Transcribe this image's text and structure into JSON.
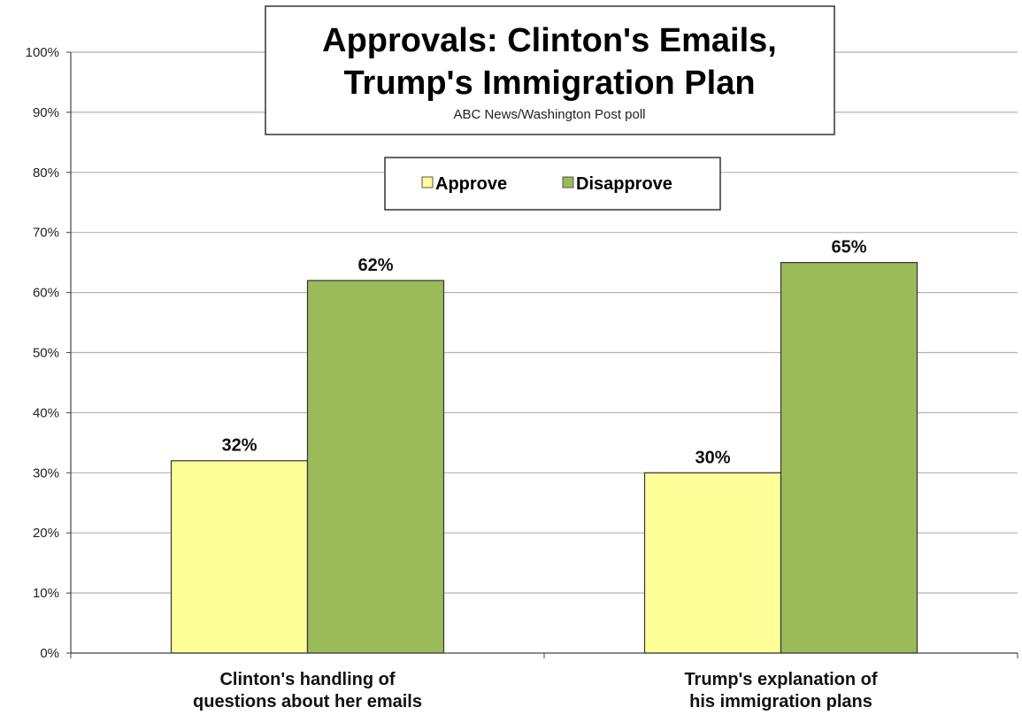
{
  "chart_data": {
    "type": "bar",
    "title": [
      "Approvals: Clinton's Emails,",
      "Trump's Immigration Plan"
    ],
    "subtitle": "ABC News/Washington  Post poll",
    "categories": [
      [
        "Clinton's handling of",
        "questions about her emails"
      ],
      [
        "Trump's explanation of",
        "his immigration plans"
      ]
    ],
    "series": [
      {
        "name": "Approve",
        "color": "#ffff99",
        "values": [
          32,
          30
        ],
        "labels": [
          "32%",
          "30%"
        ]
      },
      {
        "name": "Disapprove",
        "color": "#9bbb59",
        "values": [
          62,
          65
        ],
        "labels": [
          "62%",
          "65%"
        ]
      }
    ],
    "ylim": [
      0,
      100
    ],
    "yticks": [
      0,
      10,
      20,
      30,
      40,
      50,
      60,
      70,
      80,
      90,
      100
    ],
    "ytick_labels": [
      "0%",
      "10%",
      "20%",
      "30%",
      "40%",
      "50%",
      "60%",
      "70%",
      "80%",
      "90%",
      "100%"
    ],
    "grid": "horizontal",
    "legend_position": "top-center"
  }
}
